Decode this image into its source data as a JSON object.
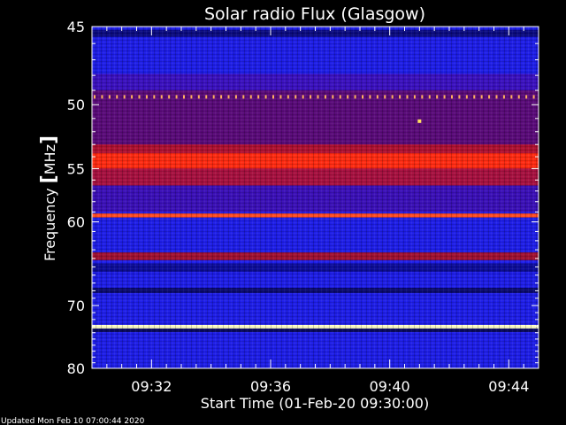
{
  "page": {
    "footer": "Updated Mon Feb 10 07:00:44 2020"
  },
  "chart_data": {
    "type": "heatmap",
    "title": "Solar radio Flux (Glasgow)",
    "xlabel": "Start Time (01-Feb-20 09:30:00)",
    "ylabel_parts": {
      "text": "Frequency ",
      "bracket_open": "[",
      "unit": "MHz",
      "bracket_close": "]"
    },
    "x_ticks": [
      "09:32",
      "09:36",
      "09:40",
      "09:44"
    ],
    "x_tick_minutes": [
      2,
      6,
      10,
      14
    ],
    "xlim_minutes": [
      0,
      15
    ],
    "y_ticks": [
      "45",
      "50",
      "55",
      "60",
      "70",
      "80"
    ],
    "y_tick_values": [
      45,
      50,
      55,
      60,
      70,
      80
    ],
    "ylim": [
      45,
      80
    ],
    "y_scale": "reciprocal",
    "grid": false,
    "colors": {
      "background": "#000000",
      "axes": "#ffffff",
      "low": "#1010e0",
      "mid": "#8a0a2a",
      "high": "#ff3010",
      "peak": "#ffffc0"
    },
    "bands": [
      {
        "freq_start": 45.0,
        "freq_end": 80.0,
        "level": "low",
        "color": "#1d1de8"
      },
      {
        "freq_start": 45.2,
        "freq_end": 45.6,
        "level": "dark",
        "color": "#0a0a80"
      },
      {
        "freq_start": 47.9,
        "freq_end": 49.0,
        "level": "low-mid",
        "color": "#3a10c0"
      },
      {
        "freq_start": 49.0,
        "freq_end": 53.5,
        "level": "mid",
        "color": "#5a0a7a"
      },
      {
        "freq_start": 53.0,
        "freq_end": 53.7,
        "level": "mid",
        "color": "#b01030"
      },
      {
        "freq_start": 53.7,
        "freq_end": 55.0,
        "level": "high",
        "color": "#ff2a10"
      },
      {
        "freq_start": 55.0,
        "freq_end": 56.5,
        "level": "mid",
        "color": "#a81040"
      },
      {
        "freq_start": 56.5,
        "freq_end": 59.0,
        "level": "low-mid",
        "color": "#3a0fb8"
      },
      {
        "freq_start": 59.15,
        "freq_end": 59.55,
        "level": "high",
        "color": "#ff4a20"
      },
      {
        "freq_start": 63.3,
        "freq_end": 64.2,
        "level": "mid",
        "color": "#a01030"
      },
      {
        "freq_start": 64.6,
        "freq_end": 65.6,
        "level": "dark",
        "color": "#0c0c9a"
      },
      {
        "freq_start": 67.6,
        "freq_end": 68.3,
        "level": "dark",
        "color": "#0a0a70"
      },
      {
        "freq_start": 72.8,
        "freq_end": 73.35,
        "level": "peak",
        "color": "#ffffc8"
      },
      {
        "freq_start": 73.35,
        "freq_end": 73.9,
        "level": "dark",
        "color": "#0a0a60"
      }
    ],
    "features": [
      {
        "kind": "dotted-line",
        "freq": 49.45,
        "color": "#ffb060",
        "count": 60
      },
      {
        "kind": "spot",
        "freq": 51.2,
        "minute": 11.0,
        "color": "#ffe060"
      }
    ]
  }
}
